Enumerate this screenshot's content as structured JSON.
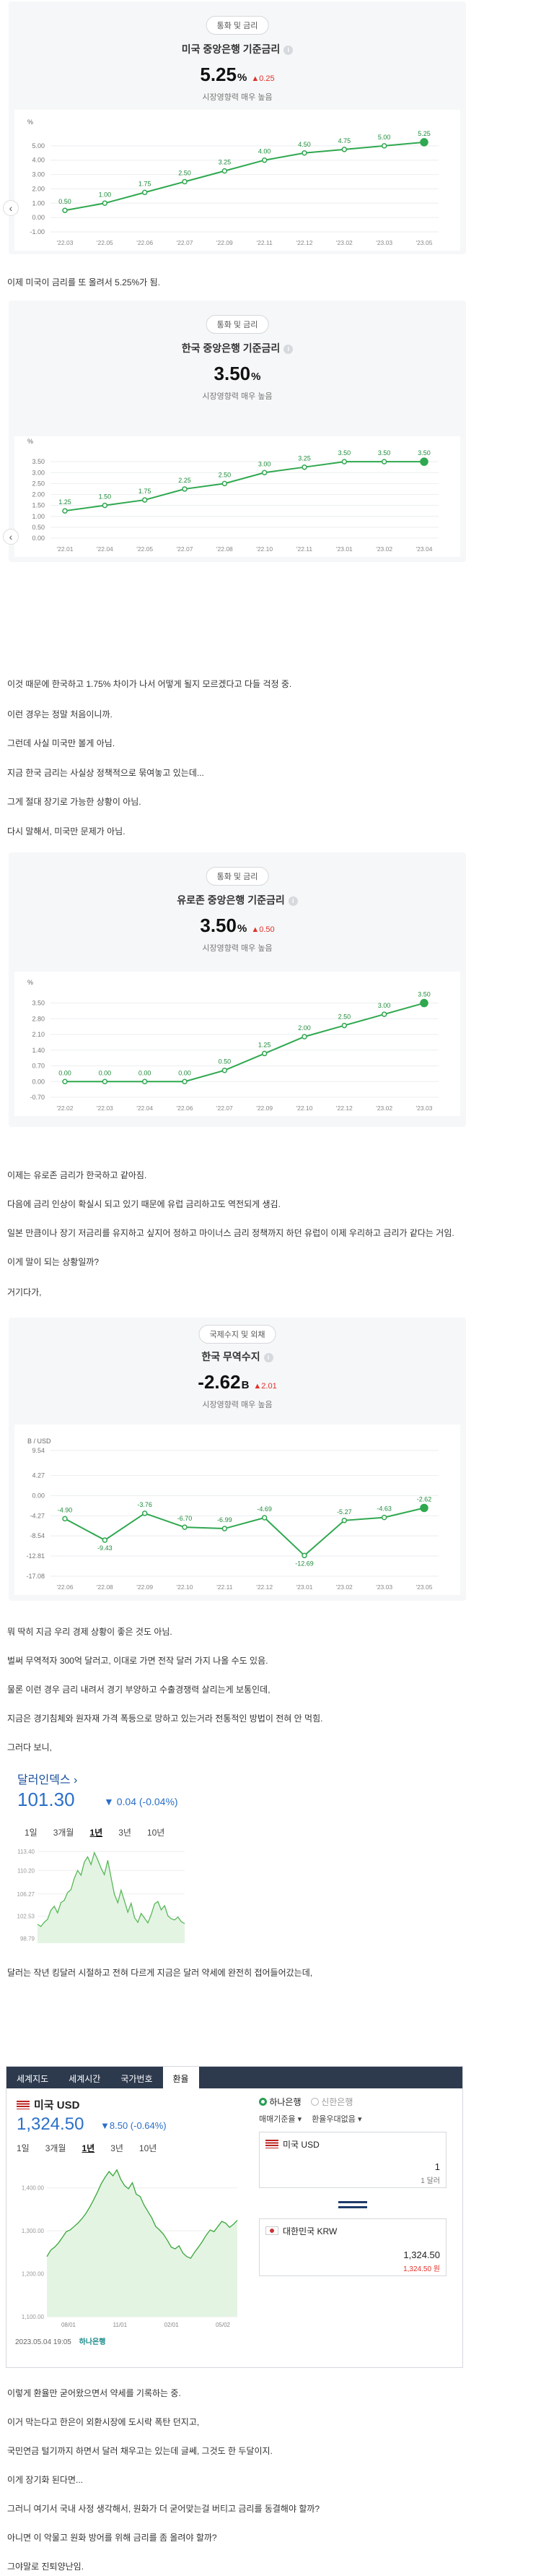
{
  "card1": {
    "category": "통화 및 금리",
    "title": "미국 중앙은행 기준금리",
    "value": "5.25",
    "unit": "%",
    "change": "▲0.25",
    "sub": "시장영향력 매우 높음"
  },
  "card2": {
    "category": "통화 및 금리",
    "title": "한국 중앙은행 기준금리",
    "value": "3.50",
    "unit": "%",
    "change": "",
    "sub": "시장영향력 매우 높음"
  },
  "card3": {
    "category": "통화 및 금리",
    "title": "유로존 중앙은행 기준금리",
    "value": "3.50",
    "unit": "%",
    "change": "▲0.50",
    "sub": "시장영향력 매우 높음"
  },
  "card4": {
    "category": "국제수지 및 외채",
    "title": "한국 무역수지",
    "value": "-2.62",
    "unit": "B",
    "change": "▲2.01",
    "sub": "시장영향력 매우 높음"
  },
  "text1": [
    "이제 미국이 금리를 또 올려서 5.25%가 됨."
  ],
  "text2": [
    "이것 때문에 한국하고 1.75% 차이가 나서 어떻게 될지 모르겠다고 다들 걱정 중.",
    "이런 경우는 정말 처음이니까.",
    "그런데 사실 미국만 볼게 아님.",
    "지금 한국 금리는 사실상 정책적으로 묶여놓고 있는데...",
    "그게 절대 장기로 가능한 상황이 아님.",
    "다시 말해서, 미국만 문제가 아님."
  ],
  "text3": [
    "이제는 유로존 금리가 한국하고 같아짐.",
    "다음에 금리 인상이 확실시 되고 있기 때문에 유럽 금리하고도 역전되게 생김.",
    "일본 만큼이나 장기 저금리를 유지하고 싶지어 정하고 마이너스 금리 정책까지 하던 유럽이 이제 우리하고 금리가 같다는 거임.",
    "이게 말이 되는 상황일까?",
    "거기다가,"
  ],
  "text4": [
    "뭐 딱히 지금 우리 경제 상황이 좋은 것도 아님.",
    "벌써 무역적자 300억 달러고, 이대로 가면 전작 달러 가지 나올 수도 있음.",
    "물론 이런 경우 금리 내려서 경기 부양하고 수출경쟁력 살리는게 보통인데,",
    "지금은 경기침체와 원자재 가격 폭등으로 망하고 있는거라 전통적인 방법이 전혀 안 먹힘.",
    "그러다 보니,"
  ],
  "text5": [
    "달러는 작년 킹달러 시절하고 전혀 다르게 지금은 달러 약세에 완전히 접어들어갔는데,"
  ],
  "text6": [
    "이렇게 환율만 굳어왔으면서 약세를 기록하는 중.",
    "이거 막는다고 한은이 외환시장에 도시락 폭탄 던지고,",
    "국민연금 털기까지 하면서 달러 채우고는 있는데 글쎄, 그것도 한 두달이지.",
    "이게 장기화 된다면...",
    "그러니 여기서 국내 사정 생각해서, 원화가 더 굳어맞는걸 버티고 금리를 동결해야 할까?",
    "아니면 이 악물고 원화 방어를 위해 금리를 좀 올려야 할까?",
    "그야말로 진퇴양난임."
  ],
  "dxy": {
    "name": "달러인덱스 ›",
    "price": "101.30",
    "change": "▼ 0.04 (-0.04%)",
    "tabs": [
      "1일",
      "3개월",
      "1년",
      "3년",
      "10년"
    ],
    "active_tab": "1년",
    "yticks": [
      "113.40",
      "110.20",
      "106.27",
      "102.53",
      "98.79"
    ]
  },
  "fx": {
    "top_tabs": [
      "세계지도",
      "세계시간",
      "국가번호",
      "환율"
    ],
    "active_top": "환율",
    "pair": "미국 USD",
    "price": "1,324.50",
    "change": "▼8.50 (-0.64%)",
    "tabs": [
      "1일",
      "3개월",
      "1년",
      "3년",
      "10년"
    ],
    "active_tab": "1년",
    "yticks": [
      "1,400.00",
      "1,300.00",
      "1,200.00",
      "1,100.00"
    ],
    "xticks": [
      "08/01",
      "11/01",
      "02/01",
      "05/02"
    ],
    "date": "2023.05.04 19:05",
    "source": "하나은행",
    "banks": [
      "하나은행",
      "신한은행"
    ],
    "sel1": "매매기준율 ▾",
    "sel2": "환율우대없음 ▾",
    "from_cur": "미국 USD",
    "from_amt": "1",
    "from_unit": "1 달러",
    "to_cur": "대한민국 KRW",
    "to_amt": "1,324.50",
    "to_unit": "1,324.50 원"
  },
  "chart_data": [
    {
      "type": "line",
      "title": "미국 중앙은행 기준금리",
      "ylabel": "%",
      "x": [
        "'22.03",
        "'22.05",
        "'22.06",
        "'22.07",
        "'22.09",
        "'22.11",
        "'22.12",
        "'23.02",
        "'23.03",
        "'23.05"
      ],
      "values": [
        0.5,
        1.0,
        1.75,
        2.5,
        3.25,
        4.0,
        4.5,
        4.75,
        5.0,
        5.25
      ],
      "yticks": [
        "5.00",
        "4.00",
        "3.00",
        "2.00",
        "1.00",
        "0.00",
        "-1.00"
      ],
      "ylim": [
        -1,
        6
      ]
    },
    {
      "type": "line",
      "title": "한국 중앙은행 기준금리",
      "ylabel": "%",
      "x": [
        "'22.01",
        "'22.04",
        "'22.05",
        "'22.07",
        "'22.08",
        "'22.10",
        "'22.11",
        "'23.01",
        "'23.02",
        "'23.04"
      ],
      "values": [
        1.25,
        1.5,
        1.75,
        2.25,
        2.5,
        3.0,
        3.25,
        3.5,
        3.5,
        3.5
      ],
      "yticks": [
        "3.50",
        "3.00",
        "2.50",
        "2.00",
        "1.50",
        "1.00",
        "0.50",
        "0.00"
      ],
      "ylim": [
        0,
        4
      ]
    },
    {
      "type": "line",
      "title": "유로존 중앙은행 기준금리",
      "ylabel": "%",
      "x": [
        "'22.02",
        "'22.03",
        "'22.04",
        "'22.06",
        "'22.07",
        "'22.09",
        "'22.10",
        "'22.12",
        "'23.02",
        "'23.03"
      ],
      "values": [
        0.0,
        0.0,
        0.0,
        0.0,
        0.5,
        1.25,
        2.0,
        2.5,
        3.0,
        3.5
      ],
      "yticks": [
        "3.50",
        "2.80",
        "2.10",
        "1.40",
        "0.70",
        "0.00",
        "-0.70"
      ],
      "ylim": [
        -0.7,
        4
      ]
    },
    {
      "type": "line",
      "title": "한국 무역수지",
      "ylabel": "B / USD",
      "x": [
        "'22.06",
        "'22.08",
        "'22.09",
        "'22.10",
        "'22.11",
        "'22.12",
        "'23.01",
        "'23.02",
        "'23.03",
        "'23.05"
      ],
      "values": [
        -4.9,
        -9.43,
        -3.76,
        -6.7,
        -6.99,
        -4.69,
        -12.69,
        -5.27,
        -4.63,
        -2.62
      ],
      "yticks": [
        "9.54",
        "4.27",
        "0.00",
        "-4.27",
        "-8.54",
        "-12.81",
        "-17.08"
      ],
      "ylim": [
        -17.08,
        9.54
      ]
    },
    {
      "type": "line",
      "title": "달러인덱스",
      "values": [
        101.2,
        100.8,
        101.5,
        102.0,
        103.5,
        104.2,
        103.1,
        104.8,
        105.2,
        106.5,
        107.0,
        108.9,
        110.2,
        109.4,
        111.6,
        112.5,
        111.2,
        113.2,
        112.0,
        110.6,
        109.5,
        111.9,
        109.0,
        106.2,
        104.8,
        106.9,
        105.1,
        103.2,
        104.7,
        102.3,
        101.5,
        103.0,
        102.2,
        101.4,
        102.8,
        104.6,
        105.0,
        103.6,
        104.3,
        102.6,
        102.1,
        101.9,
        102.4,
        101.6,
        101.3
      ],
      "ylim": [
        98,
        114
      ]
    },
    {
      "type": "area",
      "title": "미국 USD",
      "values": [
        1240,
        1255,
        1262,
        1272,
        1285,
        1298,
        1302,
        1310,
        1318,
        1328,
        1340,
        1355,
        1372,
        1390,
        1410,
        1425,
        1438,
        1428,
        1442,
        1420,
        1405,
        1398,
        1412,
        1385,
        1380,
        1360,
        1345,
        1330,
        1310,
        1302,
        1292,
        1278,
        1262,
        1258,
        1265,
        1248,
        1240,
        1236,
        1250,
        1262,
        1275,
        1290,
        1302,
        1298,
        1310,
        1322,
        1318,
        1308,
        1315,
        1324.5
      ],
      "ylim": [
        1100,
        1450
      ]
    }
  ]
}
